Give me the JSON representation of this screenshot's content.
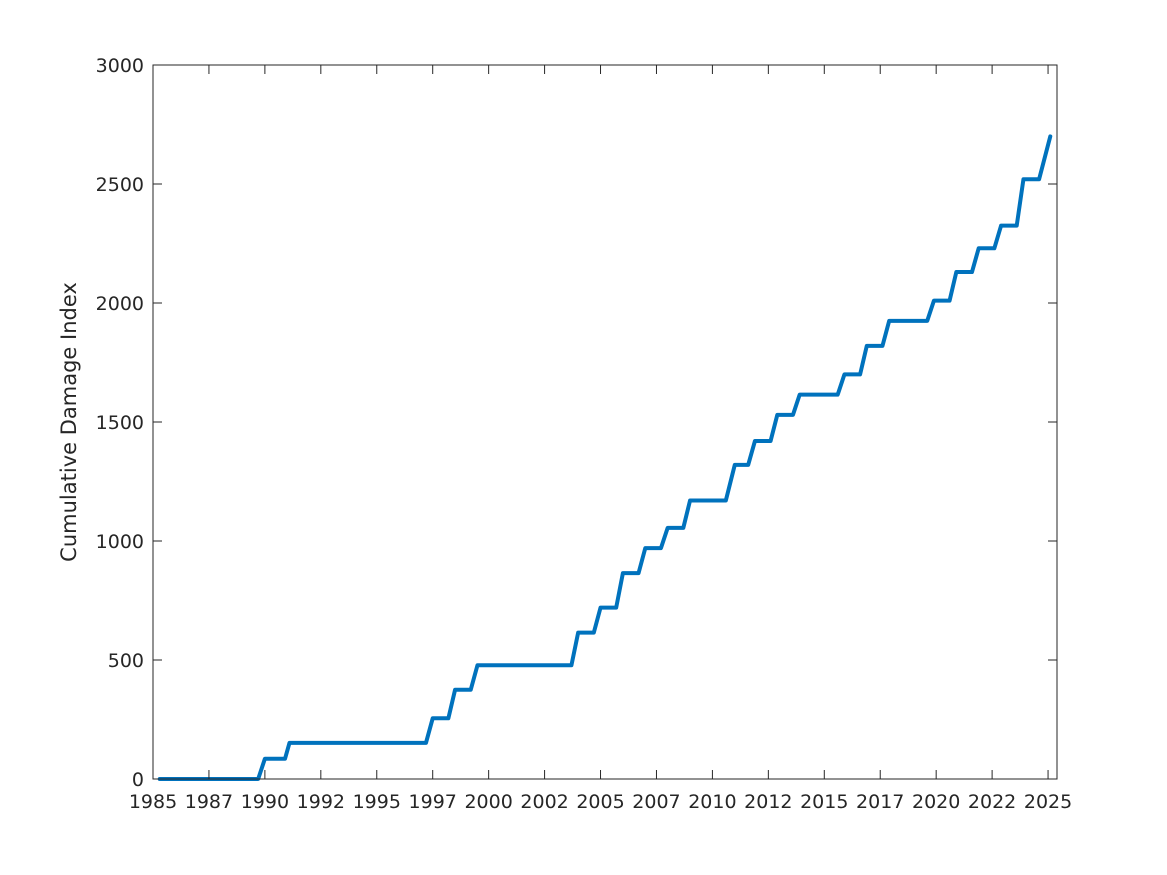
{
  "chart_data": {
    "type": "line",
    "title": "",
    "xlabel": "",
    "ylabel": "Cumulative Damage Index",
    "xlim": [
      1985.0,
      2025.4
    ],
    "ylim": [
      0,
      3000
    ],
    "grid": false,
    "line_color": "#0072bd",
    "axis_color": "#262626",
    "x_ticks": [
      1985,
      1987.5,
      1990,
      1992.5,
      1995,
      1997.5,
      2000,
      2002.5,
      2005,
      2007.5,
      2010,
      2012.5,
      2015,
      2017.5,
      2020,
      2022.5,
      2025
    ],
    "x_tick_labels": [
      "1985",
      "1987",
      "1990",
      "1992",
      "1995",
      "1997",
      "2000",
      "2002",
      "2005",
      "2007",
      "2010",
      "2012",
      "2015",
      "2017",
      "2020",
      "2022",
      "2025"
    ],
    "y_ticks": [
      0,
      500,
      1000,
      1500,
      2000,
      2500,
      3000
    ],
    "y_tick_labels": [
      "0",
      "500",
      "1000",
      "1500",
      "2000",
      "2500",
      "3000"
    ],
    "series": [
      {
        "name": "",
        "x": [
          1985.3,
          1989.7,
          1990.0,
          1990.9,
          1991.1,
          1997.2,
          1997.5,
          1998.2,
          1998.5,
          1999.2,
          1999.5,
          2003.7,
          2004.0,
          2004.7,
          2005.0,
          2005.7,
          2006.0,
          2006.7,
          2007.0,
          2007.7,
          2008.0,
          2008.7,
          2009.0,
          2010.6,
          2011.0,
          2011.6,
          2011.9,
          2012.6,
          2012.9,
          2013.6,
          2013.9,
          2015.6,
          2015.9,
          2016.6,
          2016.9,
          2017.6,
          2017.9,
          2019.6,
          2019.9,
          2020.6,
          2020.9,
          2021.6,
          2021.9,
          2022.6,
          2022.9,
          2023.6,
          2023.9,
          2024.6,
          2025.1
        ],
        "y": [
          0,
          0,
          85,
          85,
          152,
          152,
          255,
          255,
          375,
          375,
          478,
          478,
          615,
          615,
          720,
          720,
          865,
          865,
          970,
          970,
          1055,
          1055,
          1170,
          1170,
          1320,
          1320,
          1420,
          1420,
          1530,
          1530,
          1615,
          1615,
          1700,
          1700,
          1820,
          1820,
          1925,
          1925,
          2010,
          2010,
          2130,
          2130,
          2230,
          2230,
          2325,
          2325,
          2520,
          2520,
          2700
        ]
      }
    ]
  }
}
